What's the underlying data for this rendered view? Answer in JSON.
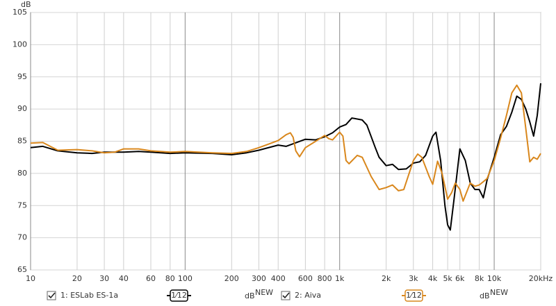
{
  "chart_data": {
    "type": "line",
    "y_label": "dB",
    "log_x": true,
    "grid": true,
    "xlim": [
      10,
      20000
    ],
    "ylim": [
      65,
      105
    ],
    "xticks": [
      10,
      20,
      30,
      40,
      60,
      80,
      100,
      200,
      300,
      400,
      600,
      800,
      {
        "value": 1000,
        "label": "1k"
      },
      {
        "value": 2000,
        "label": "2k"
      },
      {
        "value": 3000,
        "label": "3k"
      },
      {
        "value": 4000,
        "label": "4k"
      },
      {
        "value": 5000,
        "label": "5k"
      },
      {
        "value": 6000,
        "label": "6k"
      },
      {
        "value": 8000,
        "label": "8k"
      },
      {
        "value": 10000,
        "label": "10k"
      },
      {
        "value": 20000,
        "label": "20kHz"
      }
    ],
    "yticks": [
      65,
      70,
      75,
      80,
      85,
      90,
      95,
      100,
      105
    ],
    "series": [
      {
        "name": "1: ESLab ES-1a",
        "color": "#000000",
        "smoothing": "1⁄12",
        "unit": "dB",
        "badge": "NEW",
        "x": [
          10,
          12,
          15,
          20,
          25,
          30,
          40,
          50,
          60,
          80,
          100,
          150,
          200,
          250,
          300,
          400,
          450,
          500,
          600,
          700,
          800,
          900,
          1000,
          1100,
          1200,
          1400,
          1500,
          1700,
          1800,
          2000,
          2200,
          2400,
          2700,
          3000,
          3300,
          3600,
          4000,
          4200,
          4500,
          4800,
          5000,
          5200,
          5500,
          6000,
          6500,
          7000,
          7500,
          8000,
          8500,
          9000,
          10000,
          11000,
          12000,
          13000,
          14000,
          15000,
          16000,
          17000,
          18000,
          19000,
          20000
        ],
        "values": [
          84,
          84.2,
          83.5,
          83.2,
          83.1,
          83.3,
          83.3,
          83.4,
          83.3,
          83.1,
          83.2,
          83.1,
          82.9,
          83.2,
          83.6,
          84.4,
          84.2,
          84.6,
          85.3,
          85.2,
          85.7,
          86.3,
          87.2,
          87.6,
          88.6,
          88.3,
          87.5,
          84,
          82.5,
          81.2,
          81.4,
          80.6,
          80.7,
          81.6,
          81.8,
          82.8,
          85.8,
          86.4,
          82,
          75,
          72,
          71.2,
          76,
          83.8,
          82,
          78.5,
          77.5,
          77.5,
          76.2,
          79,
          82.5,
          86,
          87.3,
          89.5,
          92,
          91.5,
          90,
          88,
          85.8,
          89,
          94
        ]
      },
      {
        "name": "2: Aiva",
        "color": "#d9871c",
        "smoothing": "1⁄12",
        "unit": "dB",
        "badge": "NEW",
        "x": [
          10,
          12,
          15,
          20,
          25,
          30,
          35,
          40,
          50,
          60,
          80,
          100,
          150,
          200,
          250,
          300,
          400,
          450,
          480,
          500,
          520,
          550,
          600,
          700,
          800,
          850,
          900,
          1000,
          1050,
          1100,
          1150,
          1300,
          1400,
          1600,
          1800,
          2000,
          2200,
          2400,
          2600,
          3000,
          3200,
          3400,
          3800,
          4000,
          4300,
          4600,
          5000,
          5300,
          5600,
          6000,
          6300,
          7000,
          7500,
          8000,
          8500,
          9000,
          10000,
          11000,
          12000,
          13000,
          14000,
          15000,
          16000,
          17000,
          18000,
          19000,
          20000
        ],
        "values": [
          84.7,
          84.8,
          83.6,
          83.7,
          83.5,
          83.2,
          83.3,
          83.8,
          83.8,
          83.5,
          83.3,
          83.4,
          83.2,
          83.1,
          83.4,
          84,
          85.1,
          86,
          86.3,
          85.6,
          83.5,
          82.6,
          84,
          85,
          85.9,
          85.4,
          85.2,
          86.4,
          85.8,
          82,
          81.5,
          82.8,
          82.5,
          79.5,
          77.5,
          77.8,
          78.2,
          77.3,
          77.5,
          82,
          83,
          82.5,
          79.5,
          78.3,
          81.9,
          80,
          76,
          77,
          78.5,
          77.5,
          75.7,
          78.5,
          78,
          78.2,
          78.7,
          79.2,
          82,
          85.5,
          89,
          92.5,
          93.7,
          92.5,
          87,
          81.8,
          82.5,
          82.2,
          83.1
        ]
      }
    ]
  }
}
